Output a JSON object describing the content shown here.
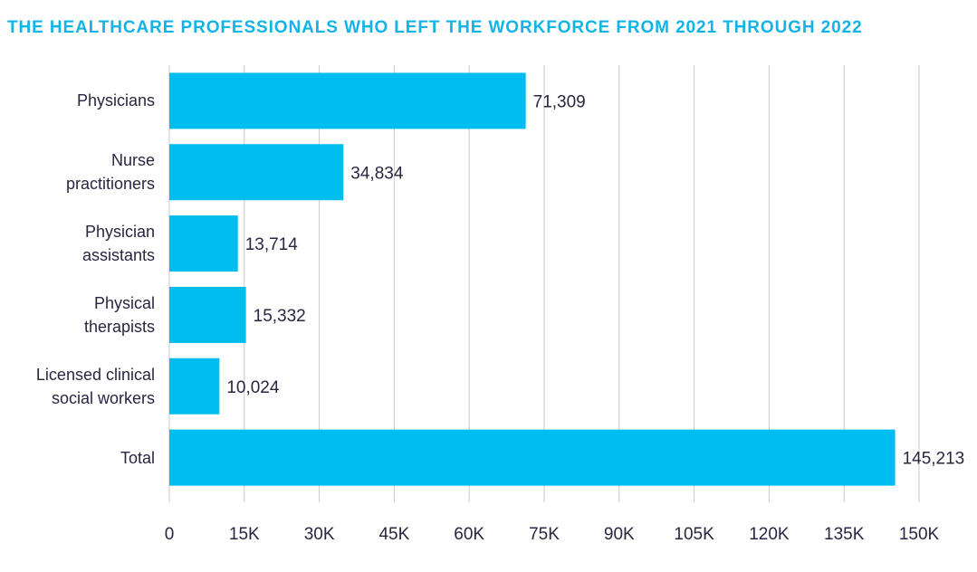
{
  "chart_data": {
    "type": "bar",
    "orientation": "horizontal",
    "title": "THE HEALTHCARE PROFESSIONALS WHO LEFT THE WORKFORCE FROM 2021 THROUGH 2022",
    "categories": [
      "Physicians",
      "Nurse\npractitioners",
      "Physician\nassistants",
      "Physical\ntherapists",
      "Licensed clinical\nsocial workers",
      "Total"
    ],
    "values": [
      71309,
      34834,
      13714,
      15332,
      10024,
      145213
    ],
    "value_labels": [
      "71,309",
      "34,834",
      "13,714",
      "15,332",
      "10,024",
      "145,213"
    ],
    "color": "#00bdf0",
    "xlim": [
      0,
      150000
    ],
    "xticks": [
      0,
      {
        "value": 15000,
        "label": "15K"
      },
      {
        "value": 30000,
        "label": "30K"
      },
      {
        "value": 45000,
        "label": "45K"
      },
      {
        "value": 60000,
        "label": "60K"
      },
      {
        "value": 75000,
        "label": "75K"
      },
      {
        "value": 90000,
        "label": "90K"
      },
      {
        "value": 105000,
        "label": "105K"
      },
      {
        "value": 120000,
        "label": "120K"
      },
      {
        "value": 135000,
        "label": "135K"
      },
      {
        "value": 150000,
        "label": "150K"
      }
    ],
    "grid": true
  }
}
